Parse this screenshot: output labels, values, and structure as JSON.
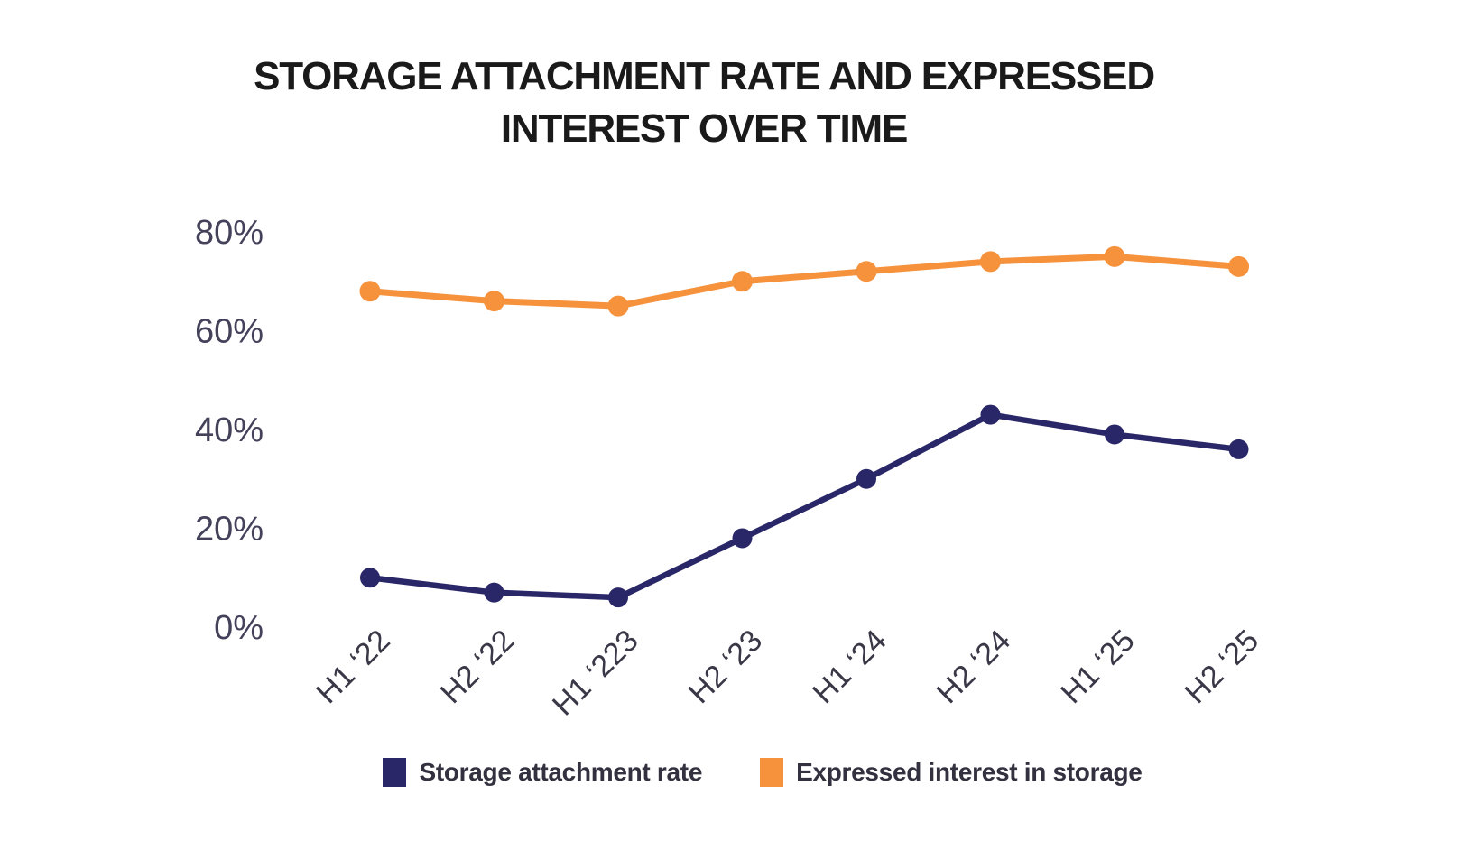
{
  "title": {
    "line1": "STORAGE ATTACHMENT RATE AND EXPRESSED",
    "line2": "INTEREST OVER TIME"
  },
  "colors": {
    "background": "#FFFFFF",
    "navy": "#292768",
    "orange": "#F6913C",
    "title_text": "#1A1A1A",
    "y_axis_text": "#44415A",
    "x_axis_text": "#3A3847",
    "legend_text": "#33313F"
  },
  "chart_data": {
    "type": "line",
    "title": "STORAGE ATTACHMENT RATE AND EXPRESSED INTEREST OVER TIME",
    "categories": [
      "H1 ‘22",
      "H2 ‘22",
      "H1 ‘223",
      "H2 ‘23",
      "H1 ‘24",
      "H2 ‘24",
      "H1 ‘25",
      "H2 ‘25"
    ],
    "series": [
      {
        "name": "Storage attachment rate",
        "color": "#292768",
        "values": [
          10,
          7,
          6,
          18,
          30,
          43,
          39,
          36
        ]
      },
      {
        "name": "Expressed interest in storage",
        "color": "#F6913C",
        "values": [
          68,
          66,
          65,
          70,
          72,
          74,
          75,
          73
        ]
      }
    ],
    "units": "%",
    "xlabel": "",
    "ylabel": "",
    "y_ticks": [
      "0%",
      "20%",
      "40%",
      "60%",
      "80%"
    ],
    "y_tick_values": [
      0,
      20,
      40,
      60,
      80
    ],
    "ylim": [
      0,
      85
    ],
    "grid": false,
    "marker": "circle",
    "legend_position": "bottom"
  }
}
